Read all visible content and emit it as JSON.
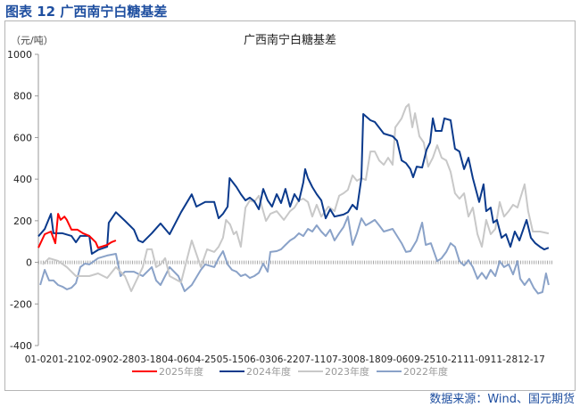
{
  "figure_title": "图表 12  广西南宁白糖基差",
  "source": "数据来源：Wind、国元期货",
  "chart_data": {
    "type": "line",
    "title": "广西南宁白糖基差",
    "ylabel": "（元/吨）",
    "xlabel": "",
    "ylim": [
      -400,
      1000
    ],
    "yticks": [
      1000,
      800,
      600,
      400,
      200,
      0,
      -200,
      -400
    ],
    "xlim": [
      0,
      18.8
    ],
    "xtick_labels": [
      "01-02",
      "01-21",
      "02-09",
      "02-28",
      "03-18",
      "04-06",
      "04-25",
      "05-15",
      "06-03",
      "06-22",
      "07-11",
      "07-30",
      "08-18",
      "09-06",
      "09-25",
      "10-21",
      "11-09",
      "11-28",
      "12-17"
    ],
    "x_unit_note": "x values in units of tick-label index",
    "legend_position": "bottom",
    "series": [
      {
        "name": "2025年度",
        "color": "#ff0000",
        "points": [
          [
            0,
            70
          ],
          [
            0.23,
            135
          ],
          [
            0.46,
            148
          ],
          [
            0.62,
            92
          ],
          [
            0.72,
            233
          ],
          [
            0.81,
            204
          ],
          [
            0.95,
            220
          ],
          [
            1.04,
            204
          ],
          [
            1.21,
            157
          ],
          [
            1.43,
            157
          ],
          [
            1.63,
            140
          ],
          [
            1.86,
            127
          ],
          [
            2.09,
            97
          ],
          [
            2.18,
            70
          ],
          [
            2.51,
            84
          ],
          [
            2.67,
            97
          ],
          [
            2.83,
            105
          ]
        ]
      },
      {
        "name": "2024年度",
        "color": "#0b3a8c",
        "points": [
          [
            0,
            125
          ],
          [
            0.23,
            160
          ],
          [
            0.46,
            233
          ],
          [
            0.55,
            140
          ],
          [
            0.88,
            140
          ],
          [
            1.21,
            127
          ],
          [
            1.37,
            96
          ],
          [
            1.53,
            127
          ],
          [
            1.86,
            127
          ],
          [
            1.95,
            41
          ],
          [
            2.18,
            60
          ],
          [
            2.51,
            75
          ],
          [
            2.57,
            190
          ],
          [
            2.83,
            241
          ],
          [
            3.16,
            200
          ],
          [
            3.49,
            157
          ],
          [
            3.65,
            105
          ],
          [
            3.81,
            96
          ],
          [
            4.14,
            140
          ],
          [
            4.46,
            187
          ],
          [
            4.79,
            135
          ],
          [
            5.21,
            241
          ],
          [
            5.6,
            327
          ],
          [
            5.77,
            268
          ],
          [
            6.09,
            290
          ],
          [
            6.42,
            290
          ],
          [
            6.58,
            212
          ],
          [
            6.74,
            233
          ],
          [
            6.91,
            268
          ],
          [
            6.98,
            405
          ],
          [
            7.23,
            362
          ],
          [
            7.39,
            328
          ],
          [
            7.56,
            298
          ],
          [
            7.72,
            311
          ],
          [
            7.88,
            294
          ],
          [
            8.05,
            255
          ],
          [
            8.21,
            353
          ],
          [
            8.37,
            298
          ],
          [
            8.53,
            268
          ],
          [
            8.7,
            328
          ],
          [
            8.86,
            285
          ],
          [
            9.02,
            353
          ],
          [
            9.19,
            268
          ],
          [
            9.35,
            328
          ],
          [
            9.51,
            294
          ],
          [
            9.67,
            384
          ],
          [
            9.74,
            448
          ],
          [
            9.84,
            405
          ],
          [
            10.0,
            362
          ],
          [
            10.16,
            328
          ],
          [
            10.33,
            298
          ],
          [
            10.49,
            212
          ],
          [
            10.65,
            255
          ],
          [
            10.81,
            220
          ],
          [
            10.98,
            225
          ],
          [
            11.14,
            230
          ],
          [
            11.3,
            241
          ],
          [
            11.47,
            277
          ],
          [
            11.63,
            255
          ],
          [
            11.79,
            405
          ],
          [
            11.86,
            713
          ],
          [
            12.12,
            683
          ],
          [
            12.28,
            675
          ],
          [
            12.61,
            619
          ],
          [
            12.93,
            606
          ],
          [
            13.09,
            585
          ],
          [
            13.26,
            490
          ],
          [
            13.42,
            477
          ],
          [
            13.58,
            448
          ],
          [
            13.68,
            409
          ],
          [
            13.81,
            460
          ],
          [
            14.01,
            456
          ],
          [
            14.17,
            541
          ],
          [
            14.3,
            576
          ],
          [
            14.4,
            692
          ],
          [
            14.5,
            632
          ],
          [
            14.72,
            632
          ],
          [
            14.82,
            692
          ],
          [
            15.05,
            683
          ],
          [
            15.21,
            546
          ],
          [
            15.37,
            533
          ],
          [
            15.54,
            448
          ],
          [
            15.7,
            503
          ],
          [
            15.86,
            405
          ],
          [
            16.09,
            290
          ],
          [
            16.25,
            375
          ],
          [
            16.35,
            246
          ],
          [
            16.51,
            263
          ],
          [
            16.61,
            191
          ],
          [
            16.74,
            204
          ],
          [
            16.91,
            118
          ],
          [
            17.07,
            135
          ],
          [
            17.23,
            75
          ],
          [
            17.39,
            148
          ],
          [
            17.56,
            105
          ],
          [
            17.82,
            204
          ],
          [
            17.98,
            118
          ],
          [
            18.14,
            92
          ],
          [
            18.31,
            75
          ],
          [
            18.47,
            62
          ],
          [
            18.63,
            70
          ]
        ]
      },
      {
        "name": "2023年度",
        "color": "#c8c8c8",
        "points": [
          [
            0.16,
            -10
          ],
          [
            0.39,
            20
          ],
          [
            0.72,
            7
          ],
          [
            1.04,
            -23
          ],
          [
            1.37,
            -66
          ],
          [
            1.86,
            -66
          ],
          [
            2.18,
            -53
          ],
          [
            2.51,
            -75
          ],
          [
            2.83,
            -23
          ],
          [
            3.16,
            -66
          ],
          [
            3.39,
            -139
          ],
          [
            3.81,
            -23
          ],
          [
            3.97,
            63
          ],
          [
            4.14,
            63
          ],
          [
            4.3,
            -23
          ],
          [
            4.46,
            -10
          ],
          [
            4.63,
            20
          ],
          [
            4.79,
            -66
          ],
          [
            5.21,
            -96
          ],
          [
            5.6,
            105
          ],
          [
            5.93,
            -23
          ],
          [
            6.16,
            63
          ],
          [
            6.42,
            50
          ],
          [
            6.58,
            75
          ],
          [
            6.74,
            118
          ],
          [
            6.85,
            204
          ],
          [
            7.0,
            182
          ],
          [
            7.13,
            135
          ],
          [
            7.23,
            148
          ],
          [
            7.39,
            75
          ],
          [
            7.56,
            263
          ],
          [
            7.72,
            298
          ],
          [
            7.88,
            290
          ],
          [
            8.05,
            320
          ],
          [
            8.14,
            277
          ],
          [
            8.31,
            199
          ],
          [
            8.47,
            233
          ],
          [
            8.7,
            246
          ],
          [
            8.96,
            204
          ],
          [
            9.19,
            246
          ],
          [
            9.35,
            263
          ],
          [
            9.51,
            298
          ],
          [
            9.67,
            306
          ],
          [
            9.84,
            290
          ],
          [
            10.0,
            220
          ],
          [
            10.16,
            277
          ],
          [
            10.33,
            220
          ],
          [
            10.59,
            268
          ],
          [
            10.81,
            246
          ],
          [
            10.98,
            320
          ],
          [
            11.14,
            332
          ],
          [
            11.3,
            349
          ],
          [
            11.47,
            418
          ],
          [
            11.63,
            392
          ],
          [
            11.79,
            405
          ],
          [
            11.95,
            396
          ],
          [
            12.12,
            533
          ],
          [
            12.28,
            533
          ],
          [
            12.44,
            490
          ],
          [
            12.61,
            469
          ],
          [
            12.77,
            503
          ],
          [
            12.93,
            469
          ],
          [
            13.03,
            649
          ],
          [
            13.26,
            692
          ],
          [
            13.42,
            747
          ],
          [
            13.52,
            760
          ],
          [
            13.65,
            649
          ],
          [
            13.75,
            717
          ],
          [
            13.91,
            606
          ],
          [
            14.07,
            576
          ],
          [
            14.23,
            460
          ],
          [
            14.4,
            503
          ],
          [
            14.56,
            563
          ],
          [
            14.72,
            503
          ],
          [
            14.89,
            490
          ],
          [
            15.05,
            435
          ],
          [
            15.21,
            332
          ],
          [
            15.37,
            306
          ],
          [
            15.54,
            332
          ],
          [
            15.7,
            220
          ],
          [
            15.86,
            263
          ],
          [
            16.03,
            135
          ],
          [
            16.19,
            75
          ],
          [
            16.35,
            204
          ],
          [
            16.51,
            135
          ],
          [
            16.68,
            161
          ],
          [
            16.84,
            290
          ],
          [
            17.0,
            220
          ],
          [
            17.17,
            246
          ],
          [
            17.33,
            277
          ],
          [
            17.49,
            263
          ],
          [
            17.75,
            375
          ],
          [
            17.88,
            246
          ],
          [
            18.05,
            148
          ],
          [
            18.31,
            148
          ],
          [
            18.63,
            139
          ]
        ]
      },
      {
        "name": "2022年度",
        "color": "#8aa2c8",
        "points": [
          [
            0.07,
            -109
          ],
          [
            0.23,
            -36
          ],
          [
            0.39,
            -87
          ],
          [
            0.55,
            -87
          ],
          [
            0.72,
            -109
          ],
          [
            0.88,
            -117
          ],
          [
            1.04,
            -130
          ],
          [
            1.21,
            -122
          ],
          [
            1.37,
            -100
          ],
          [
            1.53,
            -23
          ],
          [
            1.7,
            -6
          ],
          [
            1.86,
            -10
          ],
          [
            2.18,
            20
          ],
          [
            2.51,
            33
          ],
          [
            2.83,
            41
          ],
          [
            3.0,
            -66
          ],
          [
            3.16,
            -45
          ],
          [
            3.49,
            -45
          ],
          [
            3.81,
            -66
          ],
          [
            4.14,
            -23
          ],
          [
            4.3,
            -87
          ],
          [
            4.46,
            -109
          ],
          [
            4.79,
            -23
          ],
          [
            5.11,
            -66
          ],
          [
            5.34,
            -139
          ],
          [
            5.6,
            -109
          ],
          [
            5.93,
            -36
          ],
          [
            6.09,
            -10
          ],
          [
            6.42,
            -23
          ],
          [
            6.58,
            20
          ],
          [
            6.74,
            54
          ],
          [
            6.91,
            -10
          ],
          [
            7.07,
            -36
          ],
          [
            7.23,
            -45
          ],
          [
            7.39,
            -66
          ],
          [
            7.56,
            -58
          ],
          [
            7.72,
            -75
          ],
          [
            7.88,
            -66
          ],
          [
            8.05,
            -50
          ],
          [
            8.21,
            -6
          ],
          [
            8.37,
            -45
          ],
          [
            8.47,
            50
          ],
          [
            8.7,
            54
          ],
          [
            8.86,
            63
          ],
          [
            9.02,
            84
          ],
          [
            9.19,
            105
          ],
          [
            9.35,
            118
          ],
          [
            9.51,
            140
          ],
          [
            9.67,
            126
          ],
          [
            9.84,
            161
          ],
          [
            10.0,
            148
          ],
          [
            10.16,
            178
          ],
          [
            10.33,
            148
          ],
          [
            10.49,
            126
          ],
          [
            10.65,
            157
          ],
          [
            10.81,
            105
          ],
          [
            10.98,
            140
          ],
          [
            11.14,
            170
          ],
          [
            11.3,
            220
          ],
          [
            11.47,
            84
          ],
          [
            11.63,
            140
          ],
          [
            11.79,
            212
          ],
          [
            11.95,
            178
          ],
          [
            12.12,
            191
          ],
          [
            12.28,
            204
          ],
          [
            12.44,
            178
          ],
          [
            12.61,
            148
          ],
          [
            12.93,
            161
          ],
          [
            13.26,
            92
          ],
          [
            13.42,
            50
          ],
          [
            13.58,
            54
          ],
          [
            13.81,
            105
          ],
          [
            14.01,
            191
          ],
          [
            14.14,
            84
          ],
          [
            14.33,
            92
          ],
          [
            14.56,
            6
          ],
          [
            14.72,
            20
          ],
          [
            14.89,
            50
          ],
          [
            15.05,
            92
          ],
          [
            15.21,
            75
          ],
          [
            15.37,
            6
          ],
          [
            15.54,
            -15
          ],
          [
            15.7,
            10
          ],
          [
            15.86,
            -23
          ],
          [
            16.03,
            -79
          ],
          [
            16.19,
            -50
          ],
          [
            16.35,
            -79
          ],
          [
            16.51,
            -36
          ],
          [
            16.68,
            -66
          ],
          [
            16.84,
            6
          ],
          [
            17.0,
            -23
          ],
          [
            17.17,
            -10
          ],
          [
            17.33,
            -58
          ],
          [
            17.49,
            6
          ],
          [
            17.59,
            -79
          ],
          [
            17.75,
            -109
          ],
          [
            17.92,
            -79
          ],
          [
            18.08,
            -122
          ],
          [
            18.24,
            -150
          ],
          [
            18.4,
            -143
          ],
          [
            18.53,
            -53
          ],
          [
            18.63,
            -109
          ]
        ]
      }
    ]
  }
}
